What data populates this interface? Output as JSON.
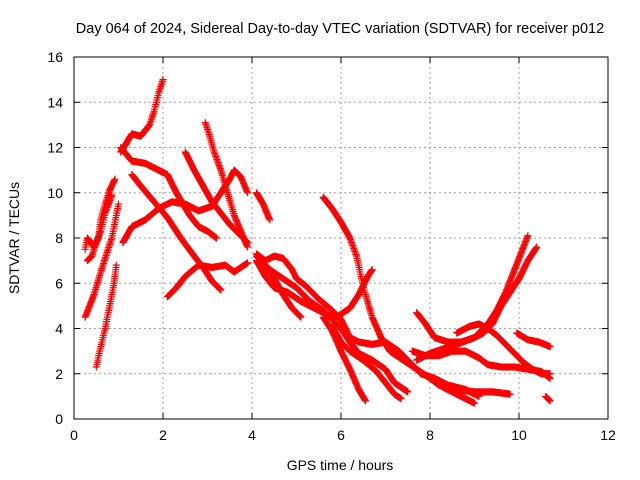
{
  "chart_data": {
    "type": "scatter",
    "title": "Day 064 of 2024, Sidereal Day-to-day VTEC variation (SDTVAR) for receiver p012",
    "xlabel": "GPS time / hours",
    "ylabel": "SDTVAR / TECUs",
    "xlim": [
      0,
      12
    ],
    "ylim": [
      0,
      16
    ],
    "xticks": [
      0,
      2,
      4,
      6,
      8,
      10,
      12
    ],
    "yticks": [
      0,
      2,
      4,
      6,
      8,
      10,
      12,
      14,
      16
    ],
    "grid": true,
    "marker": "+",
    "color": "#ff0000",
    "tracks": [
      [
        [
          0.25,
          4.5
        ],
        [
          0.45,
          5.5
        ],
        [
          0.65,
          6.8
        ],
        [
          0.85,
          8.0
        ],
        [
          1.0,
          9.5
        ]
      ],
      [
        [
          0.5,
          2.3
        ],
        [
          0.6,
          3.2
        ],
        [
          0.7,
          4.0
        ],
        [
          0.8,
          5.0
        ],
        [
          0.9,
          6.0
        ],
        [
          0.95,
          6.8
        ]
      ],
      [
        [
          0.25,
          7.5
        ],
        [
          0.3,
          8.0
        ],
        [
          0.45,
          7.6
        ],
        [
          0.55,
          8.0
        ],
        [
          0.6,
          8.8
        ],
        [
          0.7,
          9.5
        ],
        [
          0.8,
          10.1
        ],
        [
          0.92,
          10.6
        ]
      ],
      [
        [
          0.3,
          7.0
        ],
        [
          0.4,
          7.2
        ],
        [
          0.5,
          7.8
        ],
        [
          0.6,
          8.3
        ],
        [
          0.7,
          9.1
        ],
        [
          0.85,
          9.9
        ]
      ],
      [
        [
          1.1,
          7.8
        ],
        [
          1.3,
          8.5
        ],
        [
          1.6,
          8.8
        ],
        [
          1.9,
          9.3
        ],
        [
          2.2,
          9.6
        ],
        [
          2.5,
          9.5
        ],
        [
          2.8,
          9.2
        ],
        [
          3.1,
          9.4
        ],
        [
          3.3,
          10.0
        ],
        [
          3.5,
          10.6
        ],
        [
          3.6,
          11.0
        ],
        [
          3.75,
          10.7
        ],
        [
          3.9,
          10.0
        ]
      ],
      [
        [
          1.05,
          11.8
        ],
        [
          1.15,
          12.1
        ],
        [
          1.3,
          12.6
        ],
        [
          1.5,
          12.5
        ],
        [
          1.7,
          13.0
        ],
        [
          1.8,
          13.6
        ],
        [
          1.9,
          14.4
        ],
        [
          2.0,
          15.0
        ]
      ],
      [
        [
          1.05,
          12.0
        ],
        [
          1.3,
          11.4
        ],
        [
          1.6,
          11.3
        ],
        [
          1.9,
          11.0
        ],
        [
          2.1,
          10.8
        ],
        [
          2.3,
          10.0
        ],
        [
          2.6,
          9.0
        ],
        [
          2.8,
          8.5
        ],
        [
          3.0,
          8.3
        ],
        [
          3.2,
          8.0
        ]
      ],
      [
        [
          1.3,
          10.8
        ],
        [
          1.5,
          10.3
        ],
        [
          1.8,
          9.6
        ],
        [
          2.1,
          8.9
        ],
        [
          2.4,
          8.0
        ],
        [
          2.7,
          7.2
        ],
        [
          2.9,
          6.7
        ],
        [
          3.1,
          6.1
        ],
        [
          3.3,
          5.7
        ]
      ],
      [
        [
          2.1,
          5.4
        ],
        [
          2.3,
          5.8
        ],
        [
          2.5,
          6.3
        ],
        [
          2.8,
          6.8
        ],
        [
          3.1,
          6.7
        ],
        [
          3.4,
          6.8
        ],
        [
          3.6,
          6.5
        ],
        [
          3.9,
          6.9
        ]
      ],
      [
        [
          2.5,
          11.8
        ],
        [
          2.7,
          11.0
        ],
        [
          2.9,
          10.3
        ],
        [
          3.1,
          9.6
        ],
        [
          3.3,
          9.1
        ],
        [
          3.5,
          8.6
        ],
        [
          3.7,
          8.2
        ],
        [
          3.9,
          7.8
        ]
      ],
      [
        [
          2.95,
          13.1
        ],
        [
          3.05,
          12.5
        ],
        [
          3.15,
          11.8
        ],
        [
          3.3,
          11.0
        ],
        [
          3.45,
          10.0
        ],
        [
          3.6,
          9.0
        ],
        [
          3.75,
          8.3
        ],
        [
          3.9,
          7.6
        ]
      ],
      [
        [
          4.1,
          10.0
        ],
        [
          4.25,
          9.5
        ],
        [
          4.4,
          8.8
        ]
      ],
      [
        [
          4.1,
          7.3
        ],
        [
          4.3,
          7.0
        ],
        [
          4.5,
          7.2
        ],
        [
          4.7,
          7.1
        ],
        [
          4.9,
          6.6
        ],
        [
          5.0,
          6.2
        ],
        [
          5.2,
          5.9
        ],
        [
          5.5,
          5.3
        ],
        [
          5.8,
          4.8
        ],
        [
          6.0,
          4.4
        ],
        [
          6.2,
          3.6
        ],
        [
          6.4,
          3.4
        ],
        [
          6.7,
          3.3
        ],
        [
          7.0,
          3.4
        ],
        [
          7.3,
          3.0
        ],
        [
          7.6,
          2.4
        ],
        [
          7.8,
          2.0
        ],
        [
          8.1,
          1.8
        ],
        [
          8.4,
          1.5
        ],
        [
          8.8,
          1.3
        ],
        [
          9.1,
          1.0
        ]
      ],
      [
        [
          4.1,
          7.0
        ],
        [
          4.3,
          6.3
        ],
        [
          4.5,
          5.8
        ],
        [
          4.8,
          5.6
        ],
        [
          5.1,
          5.2
        ],
        [
          5.4,
          4.9
        ],
        [
          5.7,
          4.6
        ],
        [
          5.9,
          4.5
        ],
        [
          6.2,
          4.9
        ],
        [
          6.4,
          5.5
        ],
        [
          6.6,
          6.3
        ],
        [
          6.7,
          6.6
        ]
      ],
      [
        [
          4.3,
          6.8
        ],
        [
          4.5,
          6.2
        ],
        [
          4.7,
          5.5
        ],
        [
          4.9,
          4.9
        ],
        [
          5.1,
          4.5
        ]
      ],
      [
        [
          4.1,
          7.2
        ],
        [
          4.4,
          6.6
        ],
        [
          4.7,
          6.2
        ],
        [
          5.0,
          5.8
        ],
        [
          5.3,
          5.2
        ],
        [
          5.6,
          4.8
        ],
        [
          5.8,
          4.4
        ],
        [
          6.0,
          4.0
        ],
        [
          6.2,
          3.4
        ],
        [
          6.4,
          2.9
        ],
        [
          6.7,
          2.6
        ],
        [
          7.0,
          2.2
        ],
        [
          7.2,
          1.6
        ],
        [
          7.5,
          1.2
        ]
      ],
      [
        [
          5.6,
          9.8
        ],
        [
          5.8,
          9.3
        ],
        [
          6.0,
          8.7
        ],
        [
          6.2,
          8.0
        ],
        [
          6.35,
          7.2
        ],
        [
          6.45,
          6.3
        ],
        [
          6.55,
          5.5
        ],
        [
          6.7,
          4.5
        ],
        [
          6.9,
          3.6
        ],
        [
          7.1,
          3.0
        ],
        [
          7.4,
          2.6
        ],
        [
          7.7,
          2.2
        ],
        [
          8.0,
          1.8
        ],
        [
          8.2,
          1.5
        ],
        [
          8.6,
          1.3
        ],
        [
          9.0,
          1.2
        ],
        [
          9.4,
          1.2
        ],
        [
          9.8,
          1.1
        ]
      ],
      [
        [
          5.6,
          4.5
        ],
        [
          5.8,
          3.9
        ],
        [
          6.0,
          3.0
        ],
        [
          6.2,
          2.2
        ],
        [
          6.4,
          1.3
        ],
        [
          6.55,
          0.8
        ]
      ],
      [
        [
          5.8,
          4.1
        ],
        [
          6.0,
          3.4
        ],
        [
          6.2,
          3.0
        ],
        [
          6.5,
          2.6
        ],
        [
          6.8,
          2.1
        ],
        [
          7.0,
          1.6
        ],
        [
          7.2,
          1.1
        ],
        [
          7.35,
          0.9
        ]
      ],
      [
        [
          7.7,
          4.7
        ],
        [
          7.9,
          4.2
        ],
        [
          8.1,
          3.6
        ],
        [
          8.4,
          3.4
        ],
        [
          8.7,
          3.4
        ],
        [
          9.0,
          3.6
        ],
        [
          9.2,
          3.8
        ],
        [
          9.4,
          4.2
        ],
        [
          9.6,
          5.0
        ],
        [
          9.8,
          5.6
        ],
        [
          10.0,
          6.2
        ],
        [
          10.2,
          7.0
        ],
        [
          10.4,
          7.6
        ]
      ],
      [
        [
          7.7,
          2.6
        ],
        [
          8.0,
          2.9
        ],
        [
          8.3,
          3.1
        ],
        [
          8.6,
          3.3
        ],
        [
          9.0,
          3.6
        ],
        [
          9.3,
          4.2
        ],
        [
          9.5,
          4.8
        ],
        [
          9.7,
          5.6
        ],
        [
          9.9,
          6.6
        ],
        [
          10.1,
          7.6
        ],
        [
          10.2,
          8.1
        ]
      ],
      [
        [
          7.6,
          3.0
        ],
        [
          7.9,
          2.8
        ],
        [
          8.2,
          2.8
        ],
        [
          8.5,
          3.0
        ],
        [
          8.8,
          3.0
        ],
        [
          9.1,
          2.7
        ],
        [
          9.3,
          2.4
        ],
        [
          9.6,
          2.3
        ],
        [
          9.9,
          2.3
        ],
        [
          10.2,
          2.2
        ],
        [
          10.5,
          2.1
        ],
        [
          10.7,
          1.8
        ]
      ],
      [
        [
          8.0,
          1.8
        ],
        [
          8.3,
          1.4
        ],
        [
          8.6,
          1.1
        ],
        [
          8.8,
          0.9
        ],
        [
          9.0,
          0.7
        ]
      ],
      [
        [
          8.6,
          3.8
        ],
        [
          8.9,
          4.1
        ],
        [
          9.1,
          4.2
        ],
        [
          9.3,
          4.0
        ],
        [
          9.5,
          3.7
        ],
        [
          9.7,
          3.3
        ],
        [
          9.9,
          2.9
        ],
        [
          10.1,
          2.5
        ],
        [
          10.3,
          2.2
        ],
        [
          10.5,
          2.0
        ],
        [
          10.7,
          2.0
        ]
      ],
      [
        [
          9.95,
          3.8
        ],
        [
          10.2,
          3.5
        ],
        [
          10.45,
          3.4
        ],
        [
          10.7,
          3.2
        ]
      ],
      [
        [
          10.6,
          1.0
        ],
        [
          10.7,
          0.8
        ]
      ]
    ]
  }
}
